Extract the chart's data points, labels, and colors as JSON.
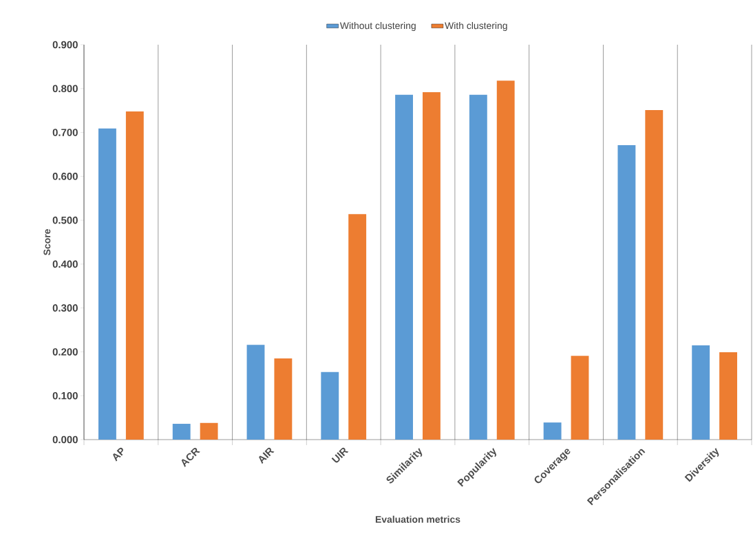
{
  "chart_data": {
    "type": "bar",
    "xlabel": "Evaluation metrics",
    "ylabel": "Score",
    "categories": [
      "AP",
      "ACR",
      "AIR",
      "UIR",
      "Similarity",
      "Popularity",
      "Coverage",
      "Personalisation",
      "Diversity"
    ],
    "series": [
      {
        "name": "Without clustering",
        "color": "#5b9bd5",
        "values": [
          0.709,
          0.036,
          0.216,
          0.154,
          0.786,
          0.786,
          0.039,
          0.671,
          0.215
        ]
      },
      {
        "name": "With clustering",
        "color": "#ed7d31",
        "values": [
          0.748,
          0.038,
          0.185,
          0.514,
          0.792,
          0.818,
          0.191,
          0.751,
          0.199
        ]
      }
    ],
    "ylim": [
      0,
      0.9
    ],
    "yticks": [
      {
        "value": 0,
        "label": "0.000"
      },
      {
        "value": 0.1,
        "label": "0.100"
      },
      {
        "value": 0.2,
        "label": "0.200"
      },
      {
        "value": 0.3,
        "label": "0.300"
      },
      {
        "value": 0.4,
        "label": "0.400"
      },
      {
        "value": 0.5,
        "label": "0.500"
      },
      {
        "value": 0.6,
        "label": "0.600"
      },
      {
        "value": 0.7,
        "label": "0.700"
      },
      {
        "value": 0.8,
        "label": "0.800"
      },
      {
        "value": 0.9,
        "label": "0.900"
      }
    ],
    "grid": "x",
    "legend": "top"
  }
}
